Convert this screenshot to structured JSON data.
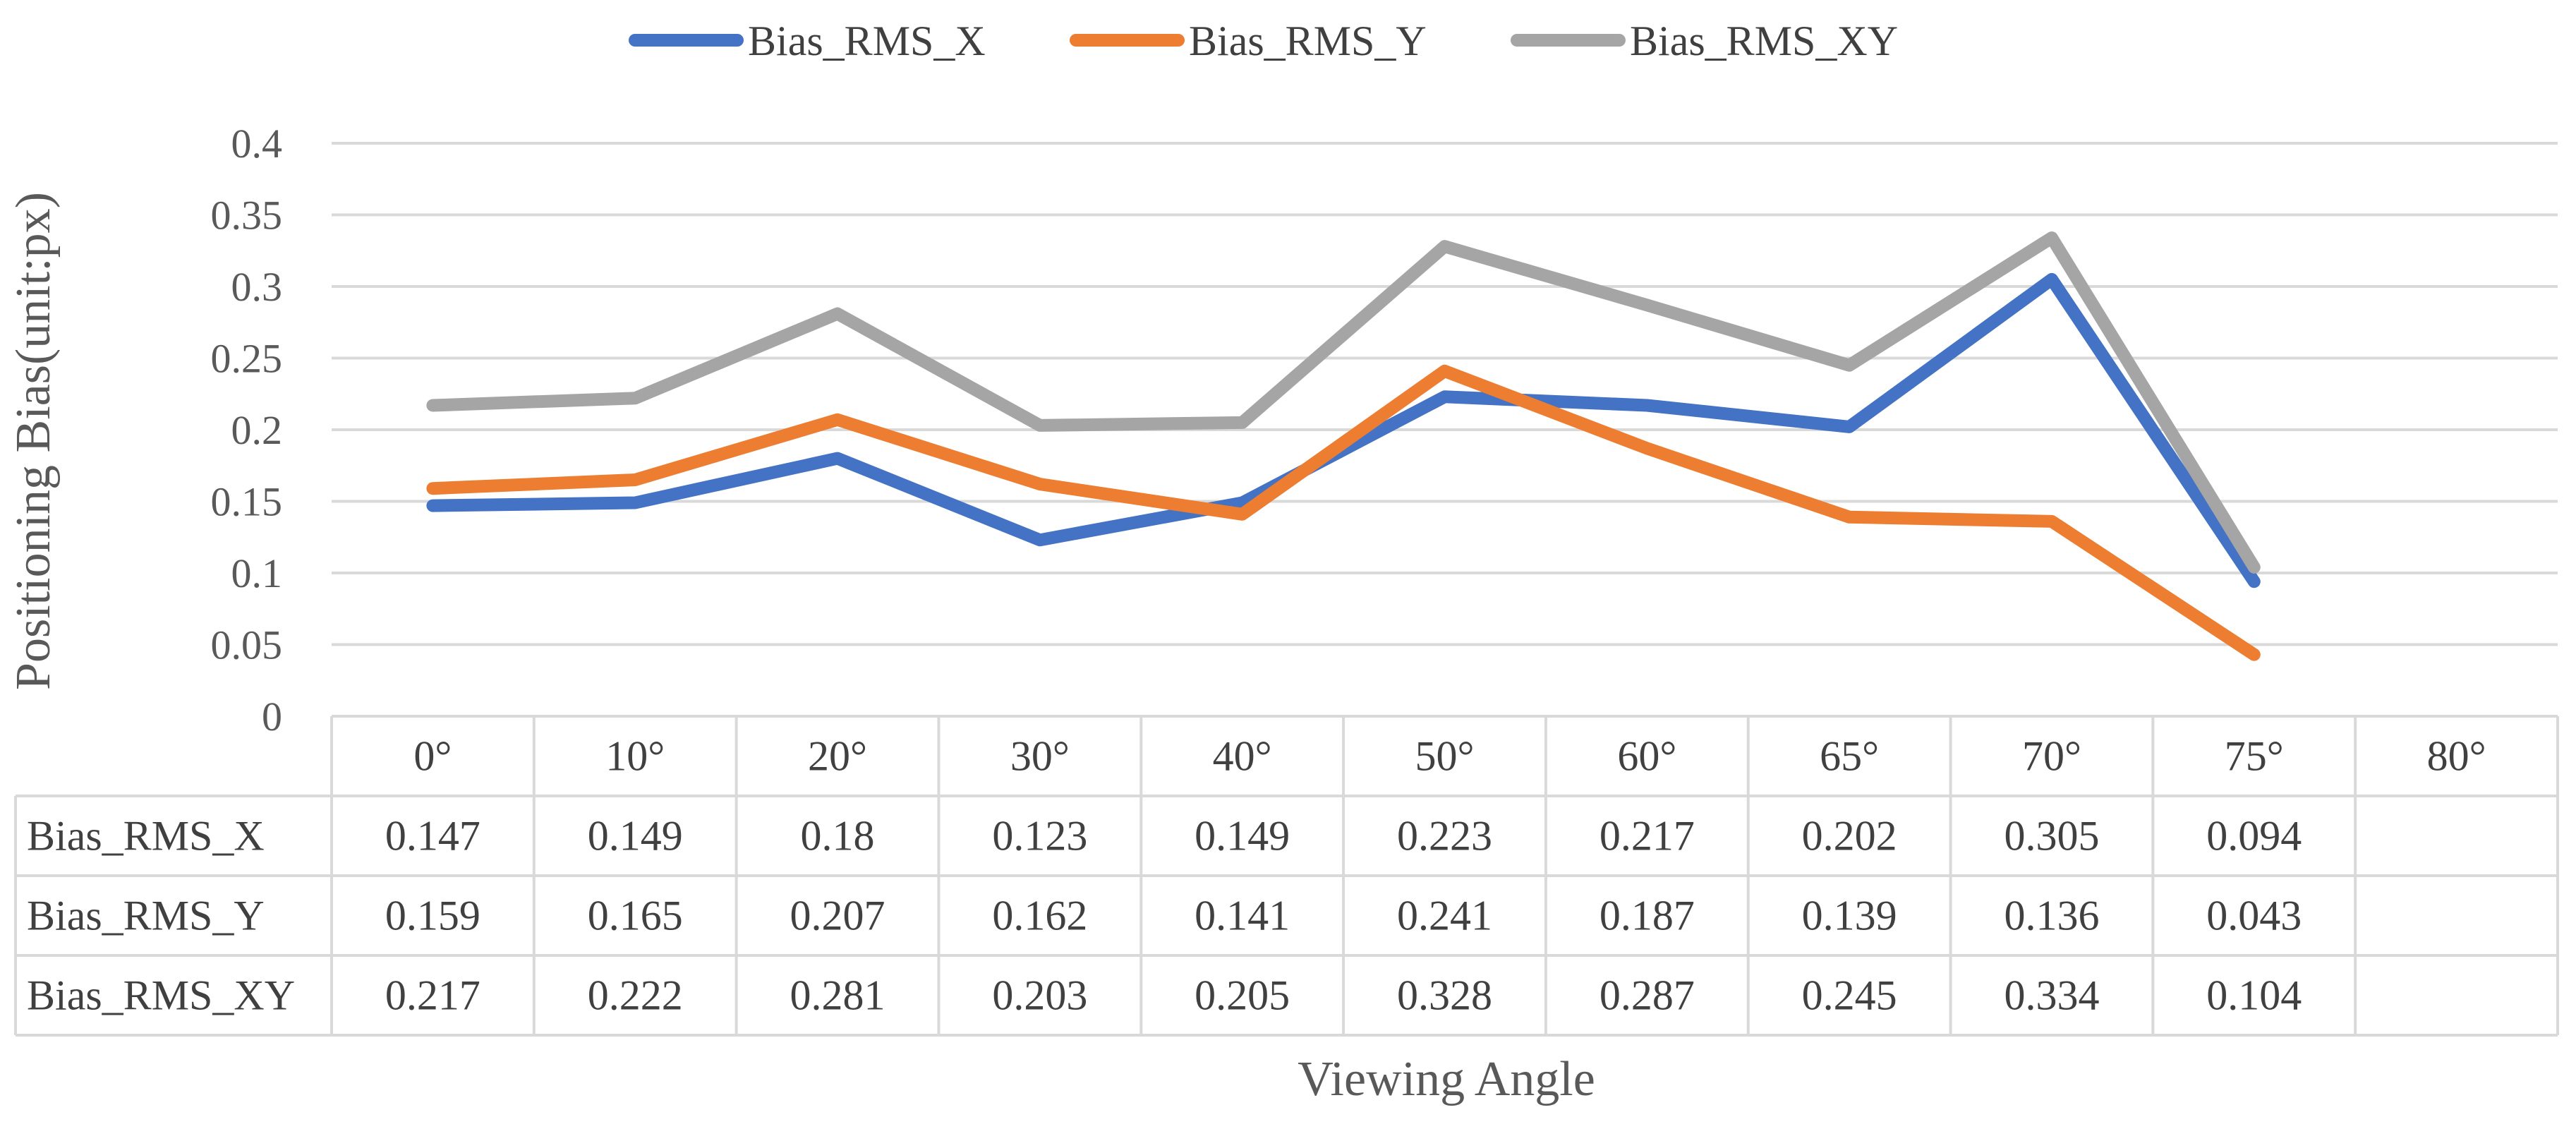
{
  "chart_data": {
    "type": "line",
    "title": "",
    "xlabel": "Viewing Angle",
    "ylabel": "Positioning Bias(unit:px)",
    "ylim": [
      0,
      0.4
    ],
    "yticks": [
      "0",
      "0.05",
      "0.1",
      "0.15",
      "0.2",
      "0.25",
      "0.3",
      "0.35",
      "0.4"
    ],
    "categories": [
      "0°",
      "10°",
      "20°",
      "30°",
      "40°",
      "50°",
      "60°",
      "65°",
      "70°",
      "75°",
      "80°"
    ],
    "legend_position": "top-center",
    "data_table": true,
    "series": [
      {
        "name": "Bias_RMS_X",
        "color": "#4472c4",
        "values": [
          0.147,
          0.149,
          0.18,
          0.123,
          0.149,
          0.223,
          0.217,
          0.202,
          0.305,
          0.094,
          null
        ],
        "labels": [
          "0.147",
          "0.149",
          "0.18",
          "0.123",
          "0.149",
          "0.223",
          "0.217",
          "0.202",
          "0.305",
          "0.094",
          ""
        ]
      },
      {
        "name": "Bias_RMS_Y",
        "color": "#ed7d31",
        "values": [
          0.159,
          0.165,
          0.207,
          0.162,
          0.141,
          0.241,
          0.187,
          0.139,
          0.136,
          0.043,
          null
        ],
        "labels": [
          "0.159",
          "0.165",
          "0.207",
          "0.162",
          "0.141",
          "0.241",
          "0.187",
          "0.139",
          "0.136",
          "0.043",
          ""
        ]
      },
      {
        "name": "Bias_RMS_XY",
        "color": "#a5a5a5",
        "values": [
          0.217,
          0.222,
          0.281,
          0.203,
          0.205,
          0.328,
          0.287,
          0.245,
          0.334,
          0.104,
          null
        ],
        "labels": [
          "0.217",
          "0.222",
          "0.281",
          "0.203",
          "0.205",
          "0.328",
          "0.287",
          "0.245",
          "0.334",
          "0.104",
          ""
        ]
      }
    ]
  }
}
